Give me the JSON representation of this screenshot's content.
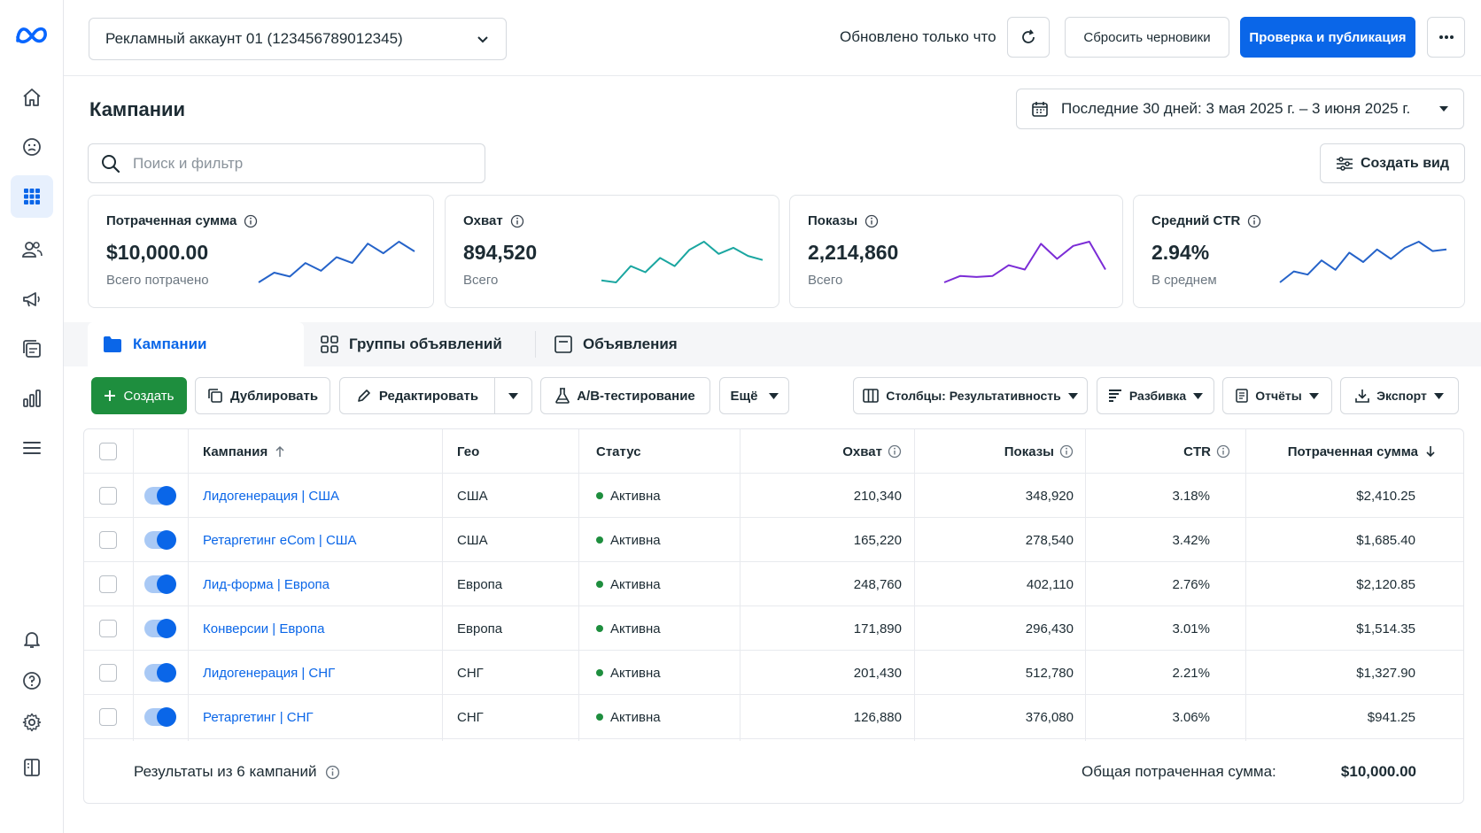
{
  "topbar": {
    "account": "Рекламный аккаунт 01 (123456789012345)",
    "updated": "Обновлено только что",
    "reset_drafts": "Сбросить черновики",
    "publish": "Проверка и публикация"
  },
  "page": {
    "title": "Кампании",
    "date_range": "Последние 30 дней: 3 мая 2025 г. – 3 июня 2025 г.",
    "search_placeholder": "Поиск и фильтр",
    "create_view": "Создать вид"
  },
  "metrics": [
    {
      "label": "Потраченная сумма",
      "value": "$10,000.00",
      "sub": "Всего потрачено",
      "color": "#2563c9",
      "trend": [
        3,
        4,
        3.6,
        5,
        4.2,
        5.6,
        5,
        7,
        6,
        7.2,
        6.2
      ]
    },
    {
      "label": "Охват",
      "value": "894,520",
      "sub": "Всего",
      "color": "#1aa6a0",
      "trend": [
        3.2,
        3,
        4.6,
        4,
        5.4,
        4.6,
        6.2,
        7,
        5.8,
        6.4,
        5.6,
        5.2
      ]
    },
    {
      "label": "Показы",
      "value": "2,214,860",
      "sub": "Всего",
      "color": "#7b2cd6",
      "trend": [
        2.4,
        3,
        2.9,
        3,
        4,
        3.6,
        6,
        4.6,
        5.8,
        6.2,
        3.6
      ]
    },
    {
      "label": "Средний CTR",
      "value": "2.94%",
      "sub": "В среднем",
      "color": "#2563c9",
      "trend": [
        2,
        3.4,
        3,
        4.8,
        3.6,
        5.8,
        4.6,
        6.2,
        5,
        6.4,
        7.2,
        6,
        6.2
      ]
    }
  ],
  "tabs": [
    "Кампании",
    "Группы объявлений",
    "Объявления"
  ],
  "toolbar": {
    "create": "Создать",
    "duplicate": "Дублировать",
    "edit": "Редактировать",
    "ab_test": "A/B-тестирование",
    "more": "Ещё",
    "columns": "Столбцы: Результативность",
    "breakdown": "Разбивка",
    "reports": "Отчёты",
    "export": "Экспорт"
  },
  "table": {
    "headers": {
      "campaign": "Кампания",
      "geo": "Гео",
      "status": "Статус",
      "reach": "Охват",
      "impressions": "Показы",
      "ctr": "CTR",
      "spent": "Потраченная сумма"
    },
    "rows": [
      {
        "name": "Лидогенерация | США",
        "geo": "США",
        "status": "Активна",
        "reach": "210,340",
        "impressions": "348,920",
        "ctr": "3.18%",
        "spent": "$2,410.25"
      },
      {
        "name": "Ретаргетинг eCom | США",
        "geo": "США",
        "status": "Активна",
        "reach": "165,220",
        "impressions": "278,540",
        "ctr": "3.42%",
        "spent": "$1,685.40"
      },
      {
        "name": "Лид-форма | Европа",
        "geo": "Европа",
        "status": "Активна",
        "reach": "248,760",
        "impressions": "402,110",
        "ctr": "2.76%",
        "spent": "$2,120.85"
      },
      {
        "name": "Конверсии | Европа",
        "geo": "Европа",
        "status": "Активна",
        "reach": "171,890",
        "impressions": "296,430",
        "ctr": "3.01%",
        "spent": "$1,514.35"
      },
      {
        "name": "Лидогенерация | СНГ",
        "geo": "СНГ",
        "status": "Активна",
        "reach": "201,430",
        "impressions": "512,780",
        "ctr": "2.21%",
        "spent": "$1,327.90"
      },
      {
        "name": "Ретаргетинг | СНГ",
        "geo": "СНГ",
        "status": "Активна",
        "reach": "126,880",
        "impressions": "376,080",
        "ctr": "3.06%",
        "spent": "$941.25"
      }
    ],
    "footer_results": "Результаты из 6 кампаний",
    "footer_total_label": "Общая потраченная сумма:",
    "footer_total_value": "$10,000.00"
  }
}
